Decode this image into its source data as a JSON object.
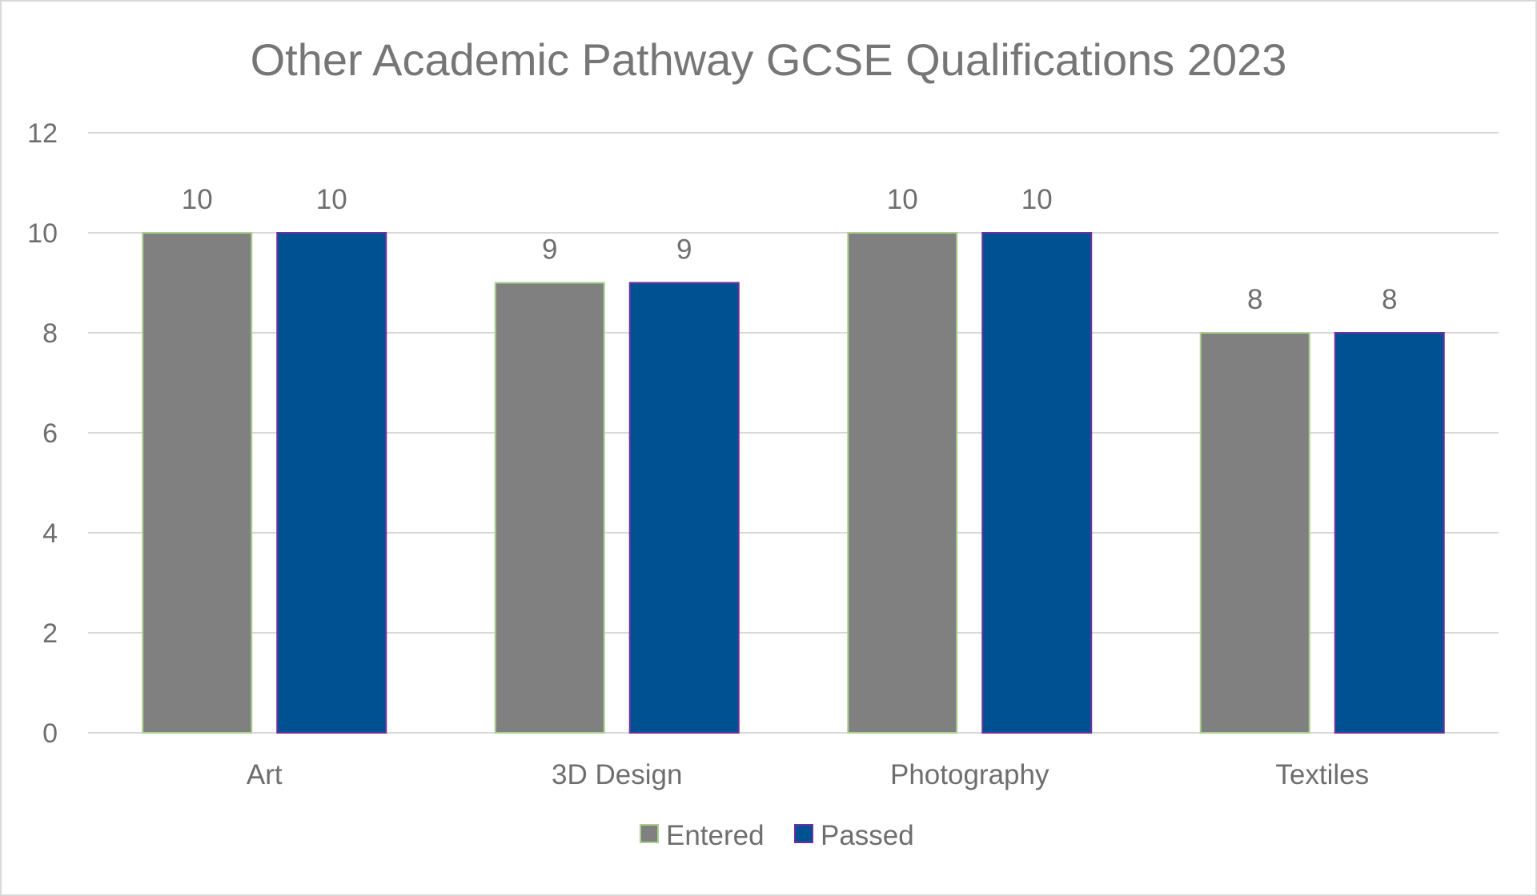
{
  "chart_data": {
    "type": "bar",
    "title": "Other Academic Pathway GCSE Qualifications 2023",
    "xlabel": "",
    "ylabel": "",
    "categories": [
      "Art",
      "3D Design",
      "Photography",
      "Textiles"
    ],
    "series": [
      {
        "name": "Entered",
        "values": [
          10,
          9,
          10,
          8
        ],
        "color": "#808080",
        "stroke": "#a9d08e"
      },
      {
        "name": "Passed",
        "values": [
          10,
          9,
          10,
          8
        ],
        "color": "#005191",
        "stroke": "#7030a0"
      }
    ],
    "ylim": [
      0,
      12
    ],
    "yticks": [
      0,
      2,
      4,
      6,
      8,
      10,
      12
    ],
    "grid": true,
    "legend": "bottom",
    "data_labels": true
  }
}
